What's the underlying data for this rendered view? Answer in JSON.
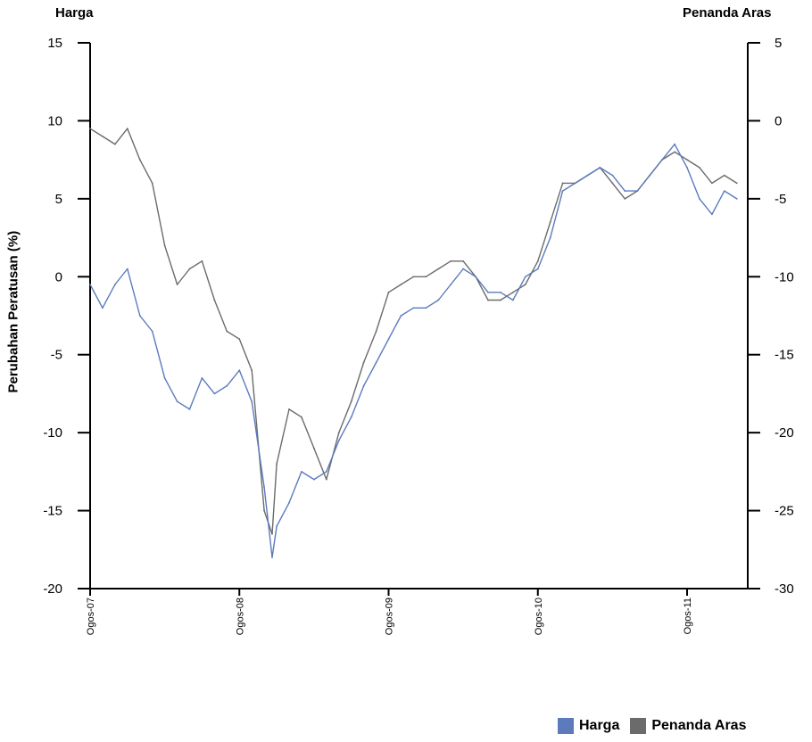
{
  "chart_data": {
    "type": "line",
    "left_axis_title": "Harga",
    "right_axis_title": "Penanda Aras",
    "ylabel": "Perubahan Peratusan (%)",
    "ylim_left": [
      -20,
      15
    ],
    "ylim_right": [
      -30,
      5
    ],
    "yticks_left": [
      "15",
      "10",
      "5",
      "0",
      "-5",
      "-10",
      "-15",
      "-20"
    ],
    "yticks_right": [
      "5",
      "0",
      "-5",
      "-10",
      "-15",
      "-20",
      "-25",
      "-30"
    ],
    "x_tick_labels": [
      "Ogos-07",
      "Ogos-08",
      "Ogos-09",
      "Ogos-10",
      "Ogos-11"
    ],
    "colors": {
      "harga": "#5b7bbd",
      "penanda_aras": "#6b6b6b"
    },
    "series": [
      {
        "name": "Harga",
        "axis": "left",
        "points": [
          [
            "Ogos-07",
            -0.5
          ],
          [
            "2007-09",
            -2.0
          ],
          [
            "2007-10",
            -0.5
          ],
          [
            "2007-11",
            0.5
          ],
          [
            "2007-12",
            -2.5
          ],
          [
            "2008-01",
            -3.5
          ],
          [
            "2008-02",
            -6.5
          ],
          [
            "2008-03",
            -8.0
          ],
          [
            "2008-04",
            -8.5
          ],
          [
            "2008-05",
            -6.5
          ],
          [
            "2008-06",
            -7.5
          ],
          [
            "2008-07",
            -7.0
          ],
          [
            "Ogos-08",
            -6.0
          ],
          [
            "2008-09",
            -8.0
          ],
          [
            "2008-10",
            -13.5
          ],
          [
            "2008-10-20",
            -18.0
          ],
          [
            "2008-11",
            -16.0
          ],
          [
            "2008-12",
            -14.5
          ],
          [
            "2009-01",
            -12.5
          ],
          [
            "2009-02",
            -13.0
          ],
          [
            "2009-03",
            -12.5
          ],
          [
            "2009-04",
            -10.5
          ],
          [
            "2009-05",
            -9.0
          ],
          [
            "2009-06",
            -7.0
          ],
          [
            "2009-07",
            -5.5
          ],
          [
            "Ogos-09",
            -4.0
          ],
          [
            "2009-09",
            -2.5
          ],
          [
            "2009-10",
            -2.0
          ],
          [
            "2009-11",
            -2.0
          ],
          [
            "2009-12",
            -1.5
          ],
          [
            "2010-01",
            -0.5
          ],
          [
            "2010-02",
            0.5
          ],
          [
            "2010-03",
            0.0
          ],
          [
            "2010-04",
            -1.0
          ],
          [
            "2010-05",
            -1.0
          ],
          [
            "2010-06",
            -1.5
          ],
          [
            "2010-07",
            0.0
          ],
          [
            "Ogos-10",
            0.5
          ],
          [
            "2010-09",
            2.5
          ],
          [
            "2010-10",
            5.5
          ],
          [
            "2010-11",
            6.0
          ],
          [
            "2010-12",
            6.5
          ],
          [
            "2011-01",
            7.0
          ],
          [
            "2011-02",
            6.5
          ],
          [
            "2011-03",
            5.5
          ],
          [
            "2011-04",
            5.5
          ],
          [
            "2011-05",
            6.5
          ],
          [
            "2011-06",
            7.5
          ],
          [
            "2011-07",
            8.5
          ],
          [
            "Ogos-11",
            7.0
          ],
          [
            "2011-09",
            5.0
          ],
          [
            "2011-10",
            4.0
          ],
          [
            "2011-11",
            5.5
          ],
          [
            "2011-12",
            5.0
          ]
        ]
      },
      {
        "name": "Penanda Aras",
        "axis": "right",
        "points": [
          [
            "Ogos-07",
            -0.5
          ],
          [
            "2007-09",
            -1.0
          ],
          [
            "2007-10",
            -1.5
          ],
          [
            "2007-11",
            -0.5
          ],
          [
            "2007-12",
            -2.5
          ],
          [
            "2008-01",
            -4.0
          ],
          [
            "2008-02",
            -8.0
          ],
          [
            "2008-03",
            -10.5
          ],
          [
            "2008-04",
            -9.5
          ],
          [
            "2008-05",
            -9.0
          ],
          [
            "2008-06",
            -11.5
          ],
          [
            "2008-07",
            -13.5
          ],
          [
            "Ogos-08",
            -14.0
          ],
          [
            "2008-09",
            -16.0
          ],
          [
            "2008-10",
            -25.0
          ],
          [
            "2008-10-20",
            -26.5
          ],
          [
            "2008-11",
            -22.0
          ],
          [
            "2008-12",
            -18.5
          ],
          [
            "2009-01",
            -19.0
          ],
          [
            "2009-02",
            -21.0
          ],
          [
            "2009-03",
            -23.0
          ],
          [
            "2009-04",
            -20.0
          ],
          [
            "2009-05",
            -18.0
          ],
          [
            "2009-06",
            -15.5
          ],
          [
            "2009-07",
            -13.5
          ],
          [
            "Ogos-09",
            -11.0
          ],
          [
            "2009-09",
            -10.5
          ],
          [
            "2009-10",
            -10.0
          ],
          [
            "2009-11",
            -10.0
          ],
          [
            "2009-12",
            -9.5
          ],
          [
            "2010-01",
            -9.0
          ],
          [
            "2010-02",
            -9.0
          ],
          [
            "2010-03",
            -10.0
          ],
          [
            "2010-04",
            -11.5
          ],
          [
            "2010-05",
            -11.5
          ],
          [
            "2010-06",
            -11.0
          ],
          [
            "2010-07",
            -10.5
          ],
          [
            "Ogos-10",
            -9.0
          ],
          [
            "2010-09",
            -6.5
          ],
          [
            "2010-10",
            -4.0
          ],
          [
            "2010-11",
            -4.0
          ],
          [
            "2010-12",
            -3.5
          ],
          [
            "2011-01",
            -3.0
          ],
          [
            "2011-02",
            -4.0
          ],
          [
            "2011-03",
            -5.0
          ],
          [
            "2011-04",
            -4.5
          ],
          [
            "2011-05",
            -3.5
          ],
          [
            "2011-06",
            -2.5
          ],
          [
            "2011-07",
            -2.0
          ],
          [
            "Ogos-11",
            -2.5
          ],
          [
            "2011-09",
            -3.0
          ],
          [
            "2011-10",
            -4.0
          ],
          [
            "2011-11",
            -3.5
          ],
          [
            "2011-12",
            -4.0
          ]
        ]
      }
    ],
    "grid": false,
    "legend": {
      "position": "bottom-right",
      "items": [
        "Harga",
        "Penanda Aras"
      ]
    }
  }
}
